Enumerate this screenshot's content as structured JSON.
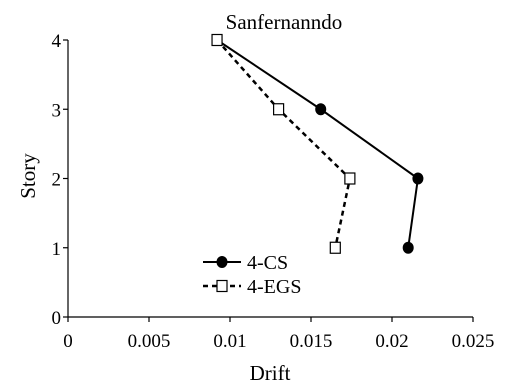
{
  "chart_data": {
    "type": "line",
    "title": "Sanfernanndo",
    "xlabel": "Drift",
    "ylabel": "Story",
    "xlim": [
      0,
      0.025
    ],
    "ylim": [
      0,
      4
    ],
    "x_ticks": [
      "0",
      "0.005",
      "0.01",
      "0.015",
      "0.02",
      "0.025"
    ],
    "y_ticks": [
      "0",
      "1",
      "2",
      "3",
      "4"
    ],
    "grid": false,
    "legend_position": "lower-left",
    "series": [
      {
        "name": "4-CS",
        "style": "solid",
        "marker": "filled-circle",
        "color": "#000000",
        "points": [
          {
            "x": 0.0092,
            "y": 4
          },
          {
            "x": 0.0156,
            "y": 3
          },
          {
            "x": 0.0216,
            "y": 2
          },
          {
            "x": 0.021,
            "y": 1
          }
        ]
      },
      {
        "name": "4-EGS",
        "style": "dashed",
        "marker": "hollow-square",
        "color": "#000000",
        "points": [
          {
            "x": 0.0092,
            "y": 4
          },
          {
            "x": 0.013,
            "y": 3
          },
          {
            "x": 0.0174,
            "y": 2
          },
          {
            "x": 0.0165,
            "y": 1
          }
        ]
      }
    ]
  }
}
